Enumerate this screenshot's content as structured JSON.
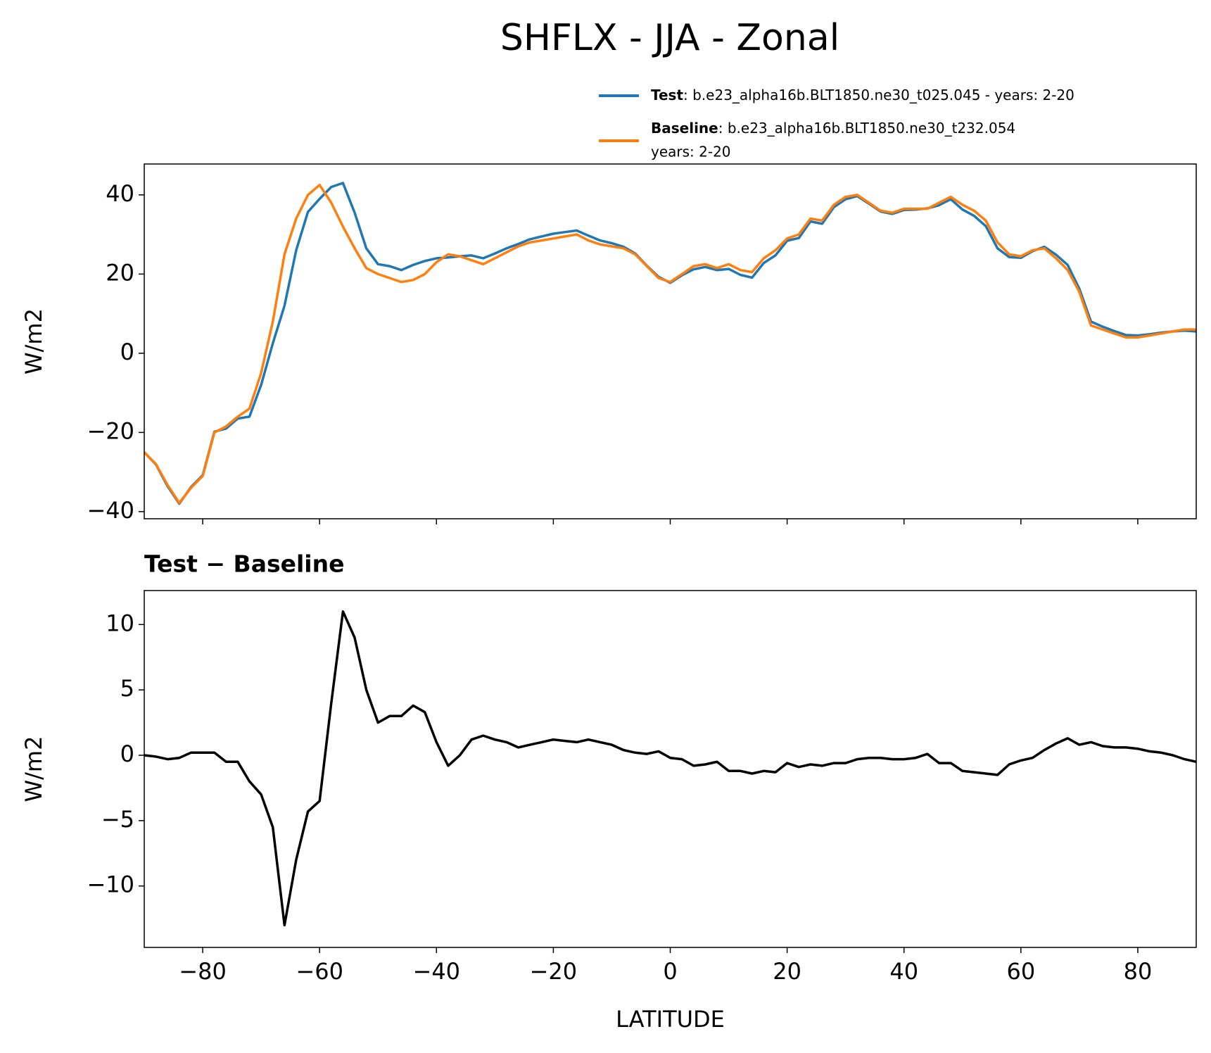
{
  "title": "SHFLX - JJA - Zonal",
  "chart_data": [
    {
      "type": "line",
      "ylabel": "W/m2",
      "xlim": [
        -90,
        90
      ],
      "ylim": [
        -41.8,
        47.8
      ],
      "xticks": [
        -80,
        -60,
        -40,
        -20,
        0,
        20,
        40,
        60,
        80
      ],
      "show_xtick_labels": false,
      "yticks": [
        {
          "value": -40,
          "label": "−40"
        },
        {
          "value": -20,
          "label": "−20"
        },
        0,
        20,
        40
      ],
      "legend": "upper right",
      "x": [
        -90,
        -88,
        -86,
        -84,
        -82,
        -80,
        -78,
        -76,
        -74,
        -72,
        -70,
        -68,
        -66,
        -64,
        -62,
        -60,
        -58,
        -56,
        -54,
        -52,
        -50,
        -48,
        -46,
        -44,
        -42,
        -40,
        -38,
        -36,
        -34,
        -32,
        -30,
        -28,
        -26,
        -24,
        -22,
        -20,
        -18,
        -16,
        -14,
        -12,
        -10,
        -8,
        -6,
        -4,
        -2,
        0,
        2,
        4,
        6,
        8,
        10,
        12,
        14,
        16,
        18,
        20,
        22,
        24,
        26,
        28,
        30,
        32,
        34,
        36,
        38,
        40,
        42,
        44,
        46,
        48,
        50,
        52,
        54,
        56,
        58,
        60,
        62,
        64,
        66,
        68,
        70,
        72,
        74,
        76,
        78,
        80,
        82,
        84,
        86,
        88,
        90
      ],
      "series": [
        {
          "name": "Test",
          "label_lines": [
            ": b.e23_alpha16b.BLT1850.ne30_t025.045 - years: 2-20"
          ],
          "color": "#1f77b4",
          "values": [
            -25,
            -28.1,
            -33.6,
            -38,
            -33.8,
            -30.8,
            -19.8,
            -19,
            -16.5,
            -16,
            -8,
            2.5,
            12,
            26,
            35.7,
            39,
            42,
            43,
            35.5,
            26.5,
            22.5,
            22,
            21,
            22.3,
            23.3,
            24,
            24.2,
            24.5,
            24.7,
            24,
            25.2,
            26.5,
            27.6,
            28.8,
            29.5,
            30.2,
            30.6,
            31,
            29.7,
            28.5,
            27.8,
            26.9,
            25.2,
            22.1,
            19.3,
            17.8,
            19.7,
            21.2,
            21.8,
            21,
            21.3,
            19.8,
            19.1,
            22.8,
            24.7,
            28.4,
            29.1,
            33.3,
            32.7,
            36.9,
            38.9,
            39.7,
            37.8,
            35.8,
            35.2,
            36.2,
            36.3,
            36.6,
            37.4,
            38.9,
            36.3,
            34.7,
            32.1,
            26.5,
            24.3,
            24.1,
            25.8,
            26.9,
            24.9,
            22.3,
            16.3,
            8,
            6.7,
            5.6,
            4.6,
            4.5,
            4.8,
            5.2,
            5.5,
            5.7,
            5.5
          ]
        },
        {
          "name": "Baseline",
          "label_lines": [
            ": b.e23_alpha16b.BLT1850.ne30_t232.054",
            "years: 2-20"
          ],
          "color": "#ff7f0e",
          "values": [
            -25,
            -28,
            -33.3,
            -37.8,
            -34,
            -31,
            -20,
            -18.5,
            -16,
            -14,
            -5,
            8,
            25,
            34,
            40,
            42.5,
            38,
            32,
            26.5,
            21.5,
            20,
            19,
            18,
            18.5,
            20,
            23,
            25,
            24.5,
            23.5,
            22.5,
            24,
            25.5,
            27,
            28,
            28.5,
            29,
            29.5,
            30,
            28.5,
            27.5,
            27,
            26.5,
            25,
            22,
            19,
            18,
            20,
            22,
            22.5,
            21.5,
            22.5,
            21,
            20.5,
            24,
            26,
            29,
            30,
            34,
            33.5,
            37.5,
            39.5,
            40,
            38,
            36,
            35.5,
            36.5,
            36.5,
            36.5,
            38,
            39.5,
            37.5,
            36,
            33.5,
            28,
            25,
            24.5,
            26,
            26.5,
            24,
            21,
            15.5,
            7,
            6,
            5,
            4,
            4,
            4.5,
            5,
            5.5,
            6,
            6
          ]
        }
      ]
    },
    {
      "type": "line",
      "title": "Test − Baseline",
      "ylabel": "W/m2",
      "xlabel": "LATITUDE",
      "xlim": [
        -90,
        90
      ],
      "ylim": [
        -14.7,
        12.6
      ],
      "xticks": [
        {
          "value": -80,
          "label": "−80"
        },
        {
          "value": -60,
          "label": "−60"
        },
        {
          "value": -40,
          "label": "−40"
        },
        {
          "value": -20,
          "label": "−20"
        },
        0,
        20,
        40,
        60,
        80
      ],
      "show_xtick_labels": true,
      "yticks": [
        {
          "value": -10,
          "label": "−10"
        },
        {
          "value": -5,
          "label": "−5"
        },
        0,
        5,
        10
      ],
      "x": [
        -90,
        -88,
        -86,
        -84,
        -82,
        -80,
        -78,
        -76,
        -74,
        -72,
        -70,
        -68,
        -66,
        -64,
        -62,
        -60,
        -58,
        -56,
        -54,
        -52,
        -50,
        -48,
        -46,
        -44,
        -42,
        -40,
        -38,
        -36,
        -34,
        -32,
        -30,
        -28,
        -26,
        -24,
        -22,
        -20,
        -18,
        -16,
        -14,
        -12,
        -10,
        -8,
        -6,
        -4,
        -2,
        0,
        2,
        4,
        6,
        8,
        10,
        12,
        14,
        16,
        18,
        20,
        22,
        24,
        26,
        28,
        30,
        32,
        34,
        36,
        38,
        40,
        42,
        44,
        46,
        48,
        50,
        52,
        54,
        56,
        58,
        60,
        62,
        64,
        66,
        68,
        70,
        72,
        74,
        76,
        78,
        80,
        82,
        84,
        86,
        88,
        90
      ],
      "series": [
        {
          "color": "#000000",
          "values": [
            0,
            -0.1,
            -0.3,
            -0.2,
            0.2,
            0.2,
            0.2,
            -0.5,
            -0.5,
            -2,
            -3,
            -5.5,
            -13,
            -8,
            -4.3,
            -3.5,
            4,
            11,
            9,
            5,
            2.5,
            3,
            3,
            3.8,
            3.3,
            1,
            -0.8,
            0,
            1.2,
            1.5,
            1.2,
            1,
            0.6,
            0.8,
            1,
            1.2,
            1.1,
            1,
            1.2,
            1,
            0.8,
            0.4,
            0.2,
            0.1,
            0.3,
            -0.2,
            -0.3,
            -0.8,
            -0.7,
            -0.5,
            -1.2,
            -1.2,
            -1.4,
            -1.2,
            -1.3,
            -0.6,
            -0.9,
            -0.7,
            -0.8,
            -0.6,
            -0.6,
            -0.3,
            -0.2,
            -0.2,
            -0.3,
            -0.3,
            -0.2,
            0.1,
            -0.6,
            -0.6,
            -1.2,
            -1.3,
            -1.4,
            -1.5,
            -0.7,
            -0.4,
            -0.2,
            0.4,
            0.9,
            1.3,
            0.8,
            1,
            0.7,
            0.6,
            0.6,
            0.5,
            0.3,
            0.2,
            0,
            -0.3,
            -0.5
          ]
        }
      ]
    }
  ]
}
